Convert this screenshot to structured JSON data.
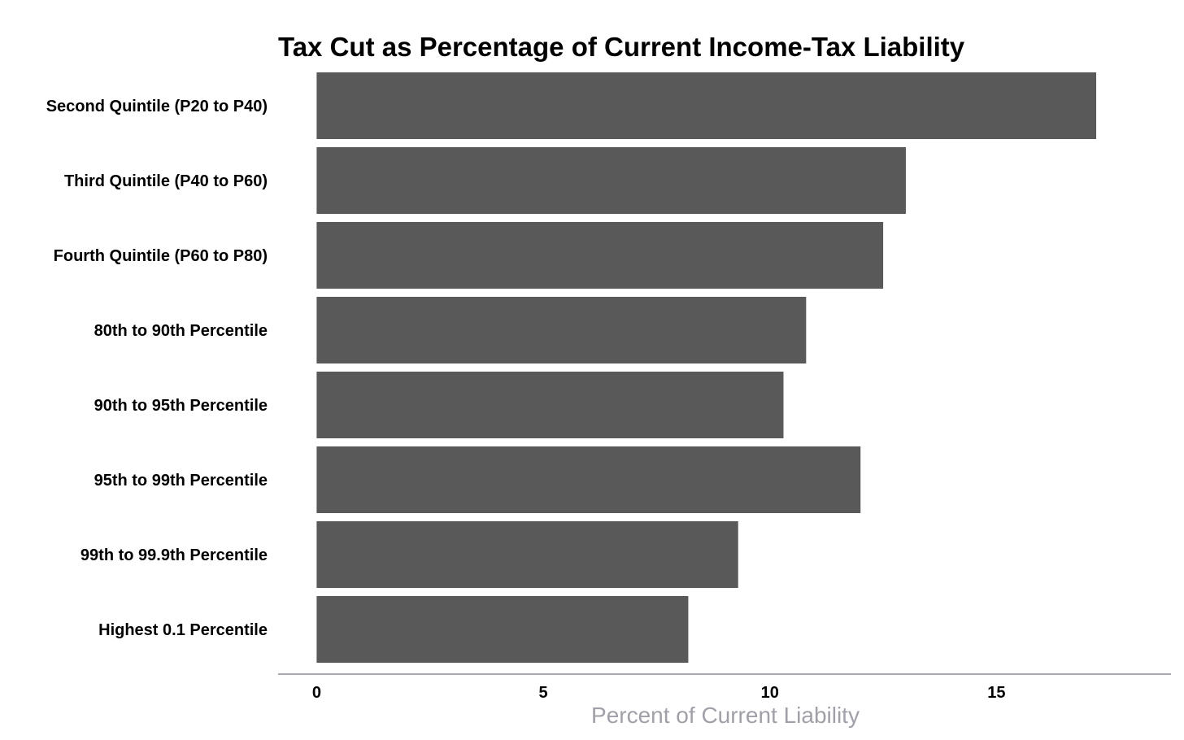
{
  "chart_data": {
    "type": "bar",
    "orientation": "horizontal",
    "title": "Tax Cut as Percentage of Current Income-Tax Liability",
    "xlabel": "Percent of Current Liability",
    "ylabel": "",
    "categories": [
      "Second Quintile (P20 to P40)",
      "Third Quintile (P40 to P60)",
      "Fourth Quintile (P60 to P80)",
      "80th to 90th Percentile",
      "90th to 95th Percentile",
      "95th to 99th Percentile",
      "99th to 99.9th Percentile",
      "Highest 0.1 Percentile"
    ],
    "values": [
      17.2,
      13.0,
      12.5,
      10.8,
      10.3,
      12.0,
      9.3,
      8.2
    ],
    "xlim": [
      -0.85,
      18.85
    ],
    "xticks": [
      0,
      5,
      10,
      15
    ],
    "xtick_labels": [
      "0",
      "5",
      "10",
      "15"
    ],
    "grid": false,
    "legend": "none",
    "colors": {
      "bar": "#595959",
      "axis_line": "#a8a8b0",
      "axis_title": "#a0a0a8",
      "text": "#000000"
    }
  }
}
